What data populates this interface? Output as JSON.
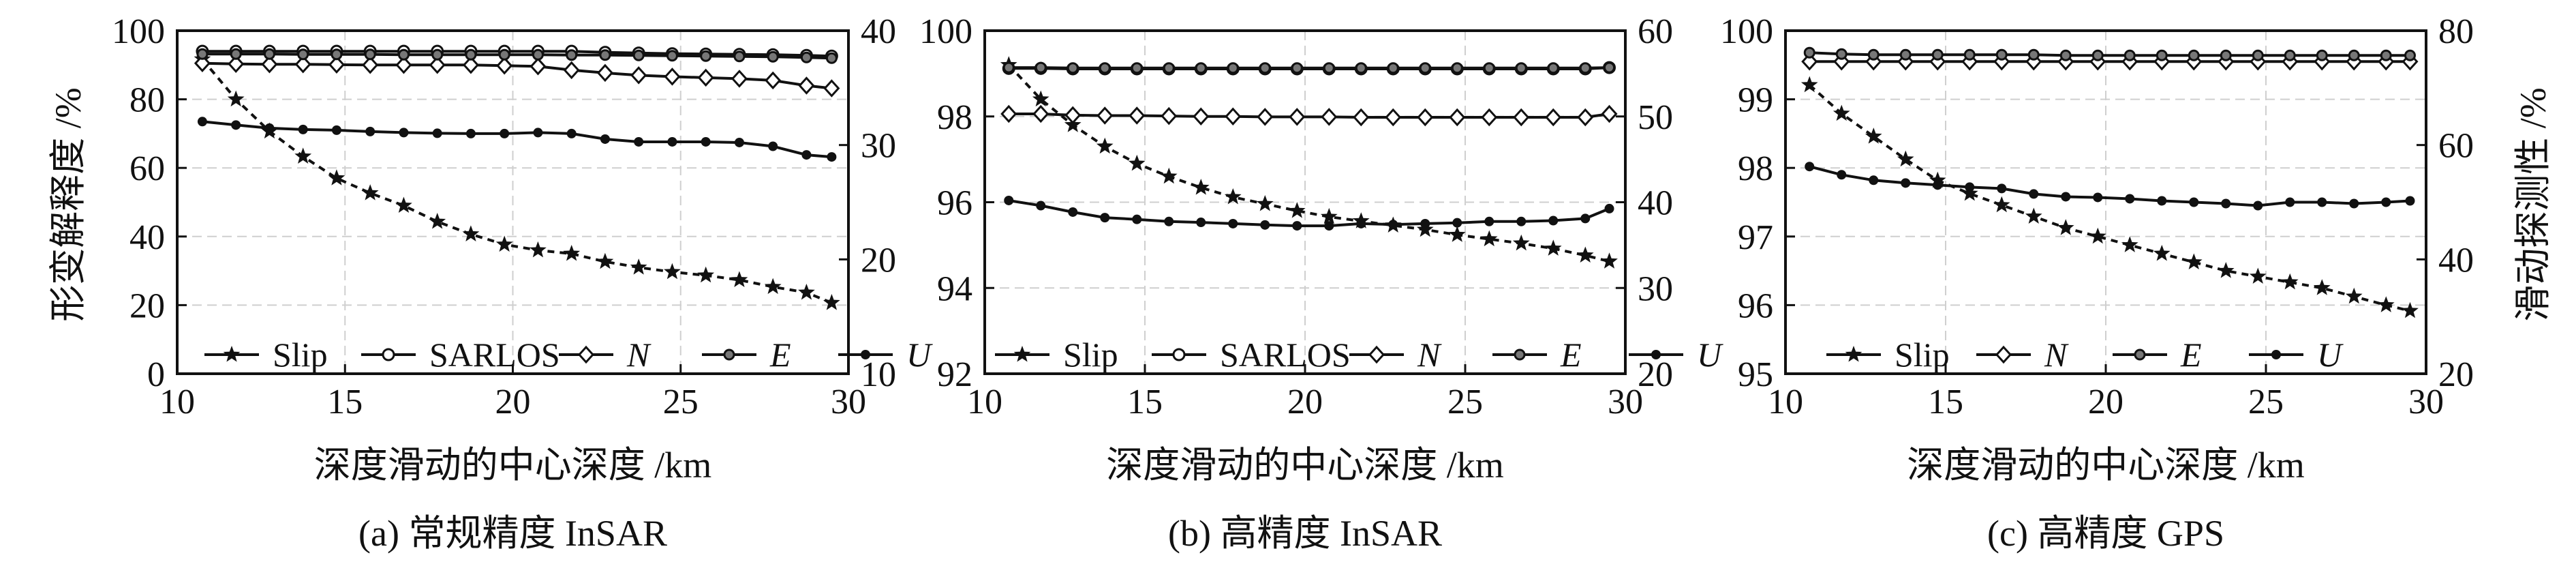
{
  "figure": {
    "shared_ylabel_left": "形变解释度 /%",
    "shared_ylabel_right": "滑动探测性 /%"
  },
  "chart_data": [
    {
      "type": "line",
      "caption": "(a) 常规精度 InSAR",
      "xlabel": "深度滑动的中心深度 /km",
      "xlim": [
        10,
        30
      ],
      "xticks": [
        10,
        15,
        20,
        25,
        30
      ],
      "ylim": [
        0,
        100
      ],
      "yticks": [
        0,
        20,
        40,
        60,
        80,
        100
      ],
      "y2lim": [
        10,
        40
      ],
      "y2ticks": [
        10,
        20,
        30,
        40
      ],
      "grid": true,
      "legend_position": "bottom",
      "x": [
        10.75,
        11.75,
        12.75,
        13.75,
        14.75,
        15.75,
        16.75,
        17.75,
        18.75,
        19.75,
        20.75,
        21.75,
        22.75,
        23.75,
        24.75,
        25.75,
        26.75,
        27.75,
        28.75,
        29.5
      ],
      "series": [
        {
          "name": "Slip",
          "marker": "star",
          "axis": "right",
          "dash": true,
          "values": [
            37.5,
            34.0,
            31.2,
            29.0,
            27.1,
            25.8,
            24.7,
            23.3,
            22.2,
            21.3,
            20.8,
            20.5,
            19.8,
            19.3,
            18.9,
            18.6,
            18.2,
            17.6,
            17.1,
            16.2
          ]
        },
        {
          "name": "SARLOS",
          "marker": "circle-open",
          "axis": "left",
          "values": [
            94,
            94,
            94,
            94,
            94,
            94,
            94,
            94,
            94,
            94,
            94,
            94,
            93.7,
            93.5,
            93.3,
            93.2,
            93.1,
            93.0,
            92.8,
            92.6
          ]
        },
        {
          "name": "N",
          "marker": "diamond",
          "axis": "left",
          "italic": true,
          "values": [
            90.5,
            90.3,
            90.2,
            90.2,
            90.1,
            90.0,
            90.0,
            90.0,
            90.0,
            89.8,
            89.6,
            88.5,
            87.7,
            87.0,
            86.6,
            86.3,
            86.0,
            85.5,
            84.0,
            83.2
          ]
        },
        {
          "name": "E",
          "marker": "circle-half",
          "axis": "left",
          "italic": true,
          "values": [
            93.2,
            93.2,
            93.2,
            93.1,
            93.1,
            93.1,
            93.0,
            93.0,
            93.0,
            93.0,
            93.0,
            92.9,
            92.9,
            92.8,
            92.7,
            92.6,
            92.5,
            92.4,
            92.2,
            92.0
          ]
        },
        {
          "name": "U",
          "marker": "dot",
          "axis": "left",
          "italic": true,
          "values": [
            73.5,
            72.5,
            71.6,
            71.2,
            71.0,
            70.6,
            70.3,
            70.1,
            70.0,
            70.0,
            70.3,
            70.0,
            68.4,
            67.6,
            67.6,
            67.6,
            67.4,
            66.3,
            63.8,
            63.2
          ]
        }
      ]
    },
    {
      "type": "line",
      "caption": "(b) 高精度 InSAR",
      "xlabel": "深度滑动的中心深度 /km",
      "xlim": [
        10,
        30
      ],
      "xticks": [
        10,
        15,
        20,
        25,
        30
      ],
      "ylim": [
        92,
        100
      ],
      "yticks": [
        92,
        94,
        96,
        98,
        100
      ],
      "y2lim": [
        20,
        60
      ],
      "y2ticks": [
        20,
        30,
        40,
        50,
        60
      ],
      "grid": true,
      "legend_position": "bottom",
      "x": [
        10.75,
        11.75,
        12.75,
        13.75,
        14.75,
        15.75,
        16.75,
        17.75,
        18.75,
        19.75,
        20.75,
        21.75,
        22.75,
        23.75,
        24.75,
        25.75,
        26.75,
        27.75,
        28.75,
        29.5
      ],
      "series": [
        {
          "name": "Slip",
          "marker": "star",
          "axis": "right",
          "dash": true,
          "values": [
            56.0,
            52.0,
            49.0,
            46.5,
            44.5,
            43.0,
            41.7,
            40.6,
            39.8,
            39.0,
            38.3,
            37.8,
            37.3,
            36.8,
            36.2,
            35.7,
            35.2,
            34.6,
            33.8,
            33.1
          ]
        },
        {
          "name": "SARLOS",
          "marker": "circle-open",
          "axis": "left",
          "values": [
            99.12,
            99.12,
            99.11,
            99.11,
            99.11,
            99.11,
            99.11,
            99.11,
            99.11,
            99.11,
            99.11,
            99.11,
            99.11,
            99.11,
            99.11,
            99.11,
            99.11,
            99.11,
            99.11,
            99.14
          ]
        },
        {
          "name": "N",
          "marker": "diamond",
          "axis": "left",
          "italic": true,
          "values": [
            98.06,
            98.06,
            98.03,
            98.02,
            98.02,
            98.01,
            98.0,
            98.0,
            97.99,
            97.99,
            97.99,
            97.98,
            97.98,
            97.98,
            97.98,
            97.98,
            97.98,
            97.98,
            97.98,
            98.06
          ]
        },
        {
          "name": "E",
          "marker": "circle-half",
          "axis": "left",
          "italic": true,
          "values": [
            99.14,
            99.14,
            99.13,
            99.13,
            99.13,
            99.13,
            99.13,
            99.13,
            99.13,
            99.13,
            99.13,
            99.13,
            99.13,
            99.13,
            99.13,
            99.13,
            99.13,
            99.13,
            99.13,
            99.14
          ]
        },
        {
          "name": "U",
          "marker": "dot",
          "axis": "left",
          "italic": true,
          "values": [
            96.04,
            95.92,
            95.77,
            95.64,
            95.6,
            95.55,
            95.53,
            95.5,
            95.47,
            95.45,
            95.45,
            95.5,
            95.48,
            95.5,
            95.52,
            95.55,
            95.55,
            95.57,
            95.62,
            95.85
          ]
        }
      ]
    },
    {
      "type": "line",
      "caption": "(c) 高精度 GPS",
      "xlabel": "深度滑动的中心深度 /km",
      "ylabel_right": "滑动探测性 /%",
      "xlim": [
        10,
        30
      ],
      "xticks": [
        10,
        15,
        20,
        25,
        30
      ],
      "ylim": [
        95,
        100
      ],
      "yticks": [
        95,
        96,
        97,
        98,
        99,
        100
      ],
      "y2lim": [
        20,
        80
      ],
      "y2ticks": [
        20,
        40,
        60,
        80
      ],
      "grid": true,
      "legend_position": "bottom",
      "x": [
        10.75,
        11.75,
        12.75,
        13.75,
        14.75,
        15.75,
        16.75,
        17.75,
        18.75,
        19.75,
        20.75,
        21.75,
        22.75,
        23.75,
        24.75,
        25.75,
        26.75,
        27.75,
        28.75,
        29.5
      ],
      "series": [
        {
          "name": "Slip",
          "marker": "star",
          "axis": "right",
          "dash": true,
          "values": [
            70.5,
            65.5,
            61.5,
            57.5,
            53.8,
            51.5,
            49.5,
            47.5,
            45.5,
            44.0,
            42.5,
            41.0,
            39.5,
            38.0,
            37.0,
            36.0,
            35.0,
            33.5,
            32.0,
            31.0
          ]
        },
        {
          "name": "N",
          "marker": "diamond",
          "axis": "left",
          "italic": true,
          "values": [
            99.55,
            99.55,
            99.55,
            99.55,
            99.55,
            99.55,
            99.55,
            99.55,
            99.55,
            99.55,
            99.55,
            99.55,
            99.55,
            99.55,
            99.55,
            99.55,
            99.55,
            99.55,
            99.55,
            99.55
          ]
        },
        {
          "name": "E",
          "marker": "circle-half",
          "axis": "left",
          "italic": true,
          "values": [
            99.68,
            99.66,
            99.65,
            99.65,
            99.65,
            99.65,
            99.65,
            99.65,
            99.64,
            99.64,
            99.64,
            99.64,
            99.64,
            99.64,
            99.64,
            99.64,
            99.64,
            99.64,
            99.64,
            99.64
          ]
        },
        {
          "name": "U",
          "marker": "dot",
          "axis": "left",
          "italic": true,
          "values": [
            98.02,
            97.9,
            97.82,
            97.78,
            97.75,
            97.72,
            97.7,
            97.62,
            97.58,
            97.57,
            97.55,
            97.52,
            97.5,
            97.48,
            97.45,
            97.5,
            97.5,
            97.48,
            97.5,
            97.52
          ]
        }
      ]
    }
  ]
}
